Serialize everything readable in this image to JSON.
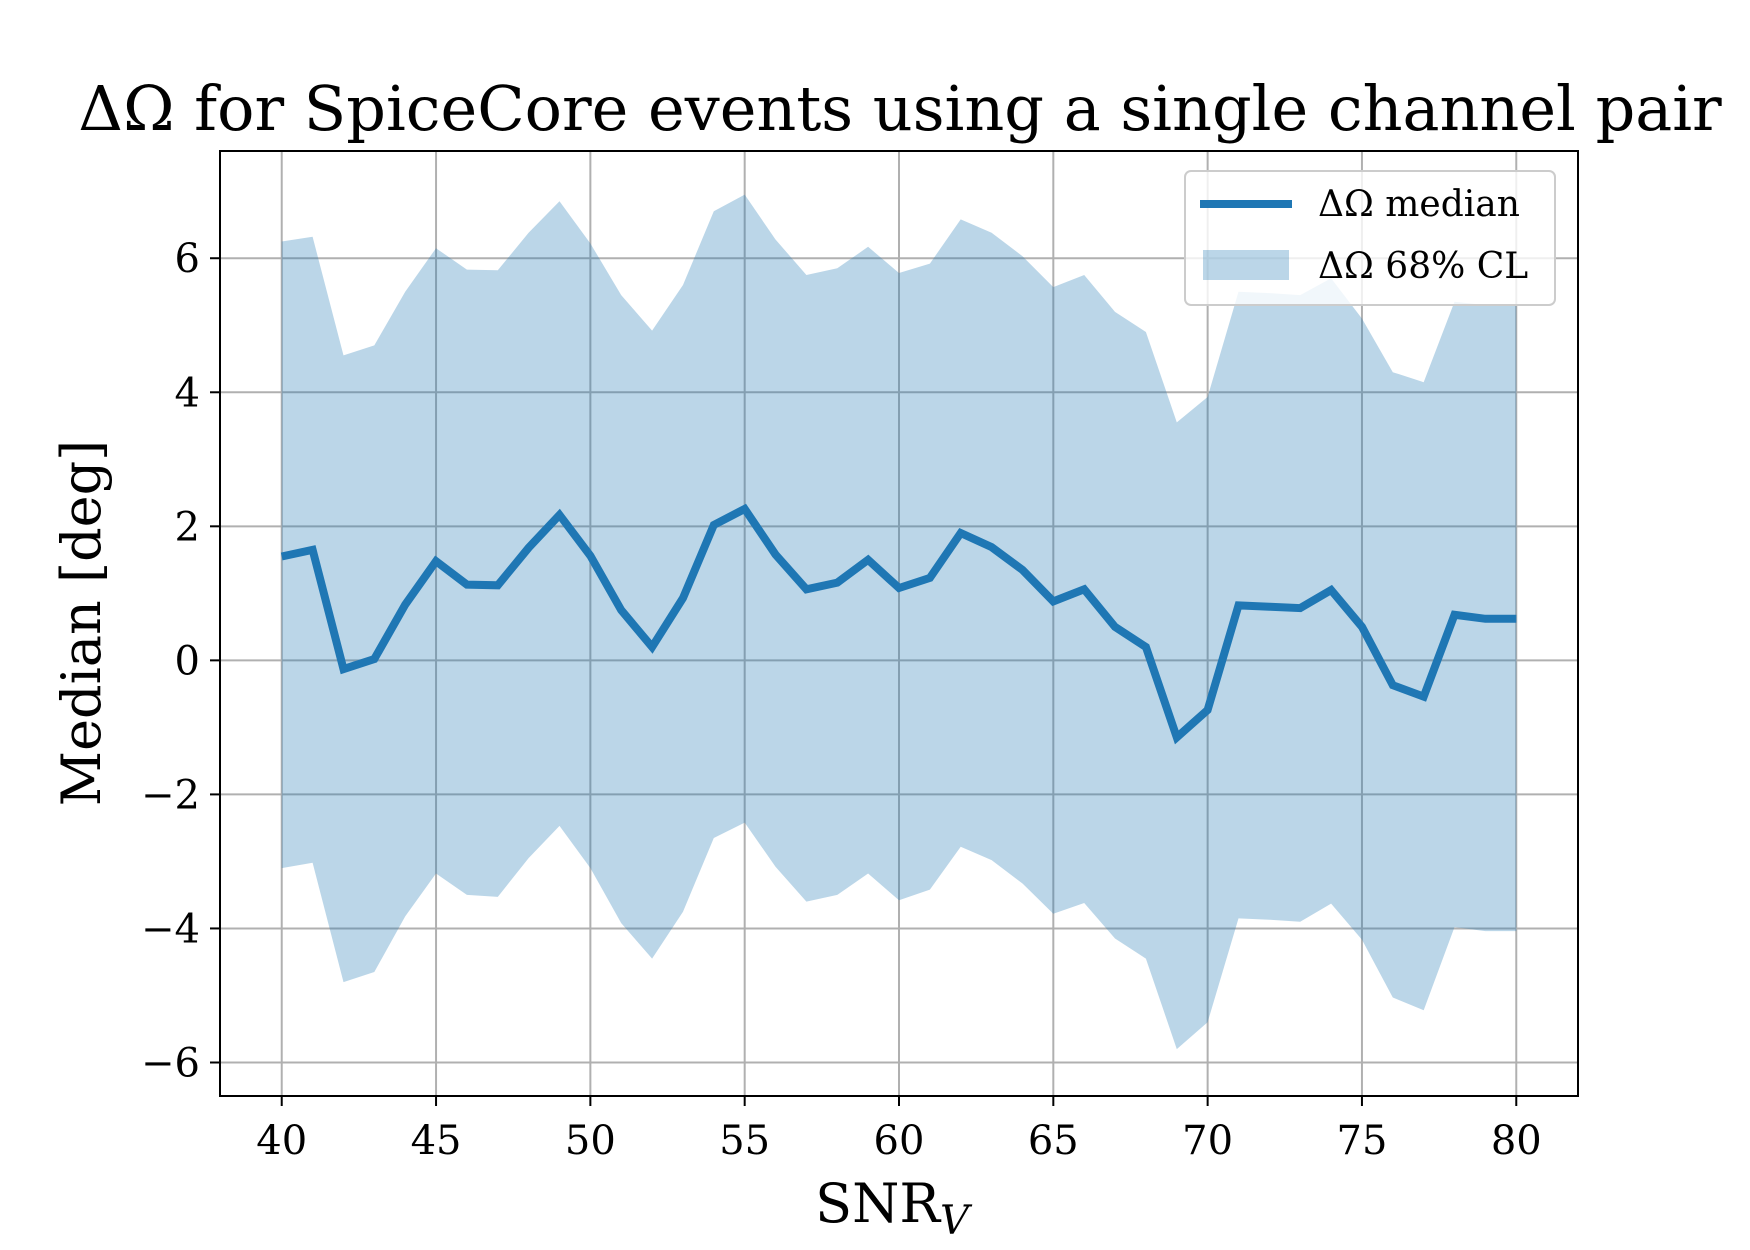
{
  "chart_data": {
    "type": "line",
    "title": "ΔΩ for SpiceCore events using a single channel pair",
    "xlabel": "SNR",
    "xlabel_subscript": "V",
    "ylabel": "Median [deg]",
    "xlim": [
      38,
      82
    ],
    "ylim": [
      -6.5,
      7.6
    ],
    "x_ticks": [
      40,
      45,
      50,
      55,
      60,
      65,
      70,
      75,
      80
    ],
    "x_tick_labels": [
      "40",
      "45",
      "50",
      "55",
      "60",
      "65",
      "70",
      "75",
      "80"
    ],
    "y_ticks": [
      -6,
      -4,
      -2,
      0,
      2,
      4,
      6
    ],
    "y_tick_labels": [
      "−6",
      "−4",
      "−2",
      "0",
      "2",
      "4",
      "6"
    ],
    "grid": true,
    "legend_position": "top-right",
    "x": [
      40,
      41,
      42,
      43,
      44,
      45,
      46,
      47,
      48,
      49,
      50,
      51,
      52,
      53,
      54,
      55,
      56,
      57,
      58,
      59,
      60,
      61,
      62,
      63,
      64,
      65,
      66,
      67,
      68,
      69,
      70,
      71,
      72,
      73,
      74,
      75,
      76,
      77,
      78,
      79,
      80
    ],
    "series": [
      {
        "name": "ΔΩ median",
        "kind": "line",
        "color": "#1f77b4",
        "values": [
          1.55,
          1.65,
          -0.13,
          0.02,
          0.83,
          1.48,
          1.13,
          1.12,
          1.68,
          2.17,
          1.56,
          0.75,
          0.2,
          0.93,
          2.02,
          2.26,
          1.58,
          1.06,
          1.16,
          1.5,
          1.08,
          1.23,
          1.9,
          1.69,
          1.35,
          0.88,
          1.06,
          0.5,
          0.2,
          -1.15,
          -0.74,
          0.82,
          0.8,
          0.78,
          1.05,
          0.5,
          -0.37,
          -0.54,
          0.68,
          0.62,
          0.62
        ]
      },
      {
        "name": "ΔΩ 68% CL",
        "kind": "band",
        "color": "#1f77b4",
        "alpha": 0.3,
        "upper": [
          6.25,
          6.32,
          4.55,
          4.7,
          5.5,
          6.15,
          5.83,
          5.82,
          6.38,
          6.85,
          6.22,
          5.45,
          4.92,
          5.6,
          6.7,
          6.95,
          6.28,
          5.75,
          5.85,
          6.17,
          5.78,
          5.92,
          6.58,
          6.38,
          6.03,
          5.57,
          5.75,
          5.2,
          4.9,
          3.55,
          3.93,
          5.5,
          5.48,
          5.45,
          5.7,
          5.1,
          4.3,
          4.15,
          5.35,
          5.3,
          5.3
        ],
        "lower": [
          -3.1,
          -3.02,
          -4.8,
          -4.65,
          -3.82,
          -3.18,
          -3.5,
          -3.53,
          -2.95,
          -2.47,
          -3.1,
          -3.92,
          -4.45,
          -3.75,
          -2.65,
          -2.42,
          -3.08,
          -3.6,
          -3.5,
          -3.18,
          -3.58,
          -3.42,
          -2.78,
          -2.98,
          -3.33,
          -3.78,
          -3.62,
          -4.15,
          -4.45,
          -5.8,
          -5.4,
          -3.85,
          -3.87,
          -3.9,
          -3.63,
          -4.17,
          -5.03,
          -5.22,
          -3.98,
          -4.04,
          -4.04
        ]
      }
    ]
  }
}
